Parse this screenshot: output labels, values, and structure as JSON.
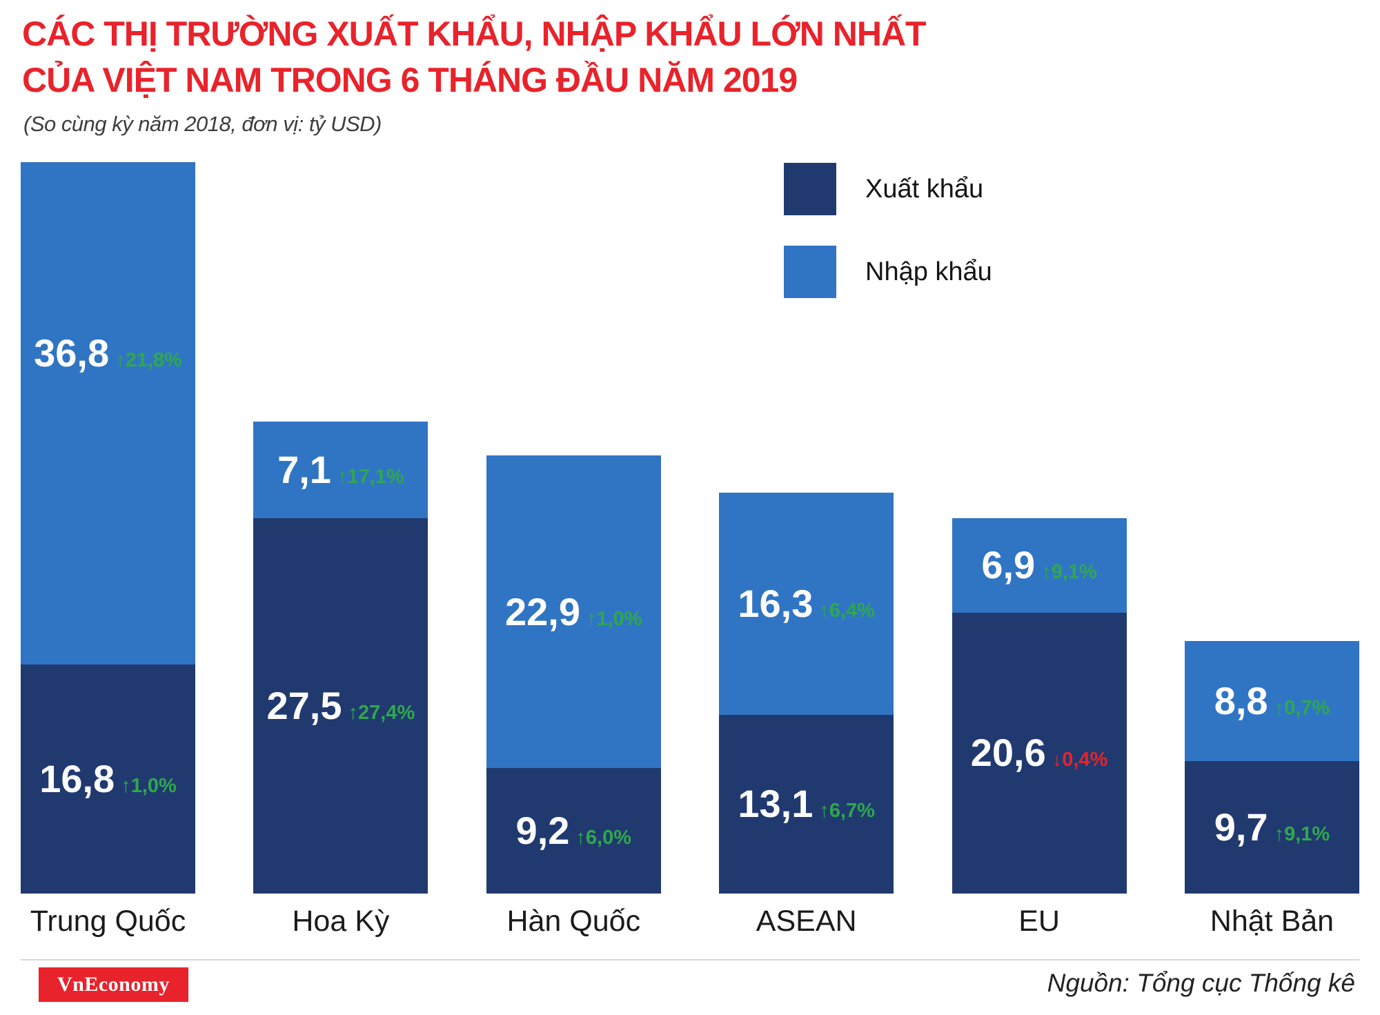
{
  "header": {
    "title_line1": "CÁC THỊ TRƯỜNG XUẤT KHẨU, NHẬP KHẨU LỚN NHẤT",
    "title_line2": "CỦA VIỆT NAM TRONG 6 THÁNG ĐẦU NĂM 2019",
    "subtitle": "(So cùng kỳ năm 2018, đơn vị: tỷ USD)"
  },
  "legend": {
    "export_label": "Xuất khẩu",
    "import_label": "Nhập khẩu"
  },
  "footer": {
    "logo_text": "VnEconomy",
    "source": "Nguồn: Tổng cục Thống kê"
  },
  "colors": {
    "title_red": "#e8232b",
    "export_navy": "#203a70",
    "import_blue": "#3075c4",
    "change_up_green": "#2fa84c",
    "change_down_red": "#e8232b"
  },
  "chart_data": {
    "type": "bar",
    "stacked": true,
    "title": "Các thị trường xuất khẩu, nhập khẩu lớn nhất của Việt Nam trong 6 tháng đầu năm 2019",
    "comparison": "So cùng kỳ năm 2018",
    "unit": "tỷ USD",
    "categories": [
      "Trung Quốc",
      "Hoa Kỳ",
      "Hàn Quốc",
      "ASEAN",
      "EU",
      "Nhật Bản"
    ],
    "ylim": [
      0,
      53.6
    ],
    "grid": false,
    "legend_position": "top-right",
    "series": [
      {
        "name": "Xuất khẩu",
        "color": "#203a70",
        "values": [
          16.8,
          27.5,
          9.2,
          13.1,
          20.6,
          9.7
        ],
        "labels": [
          "16,8",
          "27,5",
          "9,2",
          "13,1",
          "20,6",
          "9,7"
        ],
        "changes": [
          {
            "text": "1,0%",
            "dir": "up"
          },
          {
            "text": "27,4%",
            "dir": "up"
          },
          {
            "text": "6,0%",
            "dir": "up"
          },
          {
            "text": "6,7%",
            "dir": "up"
          },
          {
            "text": "0,4%",
            "dir": "down"
          },
          {
            "text": "9,1%",
            "dir": "up"
          }
        ]
      },
      {
        "name": "Nhập khẩu",
        "color": "#3075c4",
        "values": [
          36.8,
          7.1,
          22.9,
          16.3,
          6.9,
          8.8
        ],
        "labels": [
          "36,8",
          "7,1",
          "22,9",
          "16,3",
          "6,9",
          "8,8"
        ],
        "changes": [
          {
            "text": "21,8%",
            "dir": "up"
          },
          {
            "text": "17,1%",
            "dir": "up"
          },
          {
            "text": "1,0%",
            "dir": "up"
          },
          {
            "text": "6,4%",
            "dir": "up"
          },
          {
            "text": "9,1%",
            "dir": "up"
          },
          {
            "text": "0,7%",
            "dir": "up"
          }
        ]
      }
    ]
  }
}
